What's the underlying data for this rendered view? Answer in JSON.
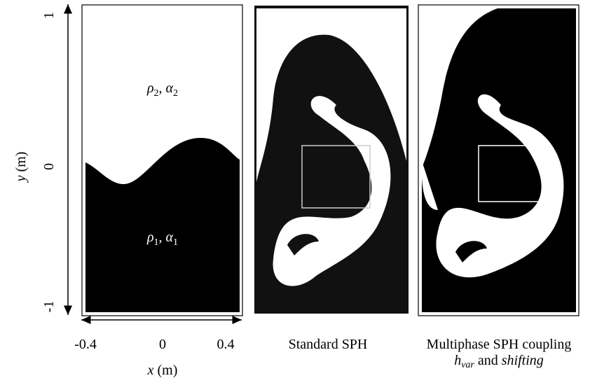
{
  "axes": {
    "y_ticks": [
      "1",
      "0",
      "-1"
    ],
    "x_ticks": [
      "-0.4",
      "0",
      "0.4"
    ],
    "y_label": {
      "symbol": "y",
      "unit": "(m)"
    },
    "x_label": {
      "symbol": "x",
      "unit": "(m)"
    }
  },
  "panels": [
    {
      "regions": [
        {
          "density": "ρ",
          "density_index": "2",
          "separator": ",",
          "fraction": "α",
          "fraction_index": "2"
        },
        {
          "density": "ρ",
          "density_index": "1",
          "separator": ",",
          "fraction": "α",
          "fraction_index": "1"
        }
      ]
    },
    {
      "caption": "Standard SPH"
    },
    {
      "caption": "Multiphase SPH coupling",
      "caption_line2": {
        "symbol": "h",
        "subscript": "var",
        "conjunction": "and",
        "method": "shifting"
      }
    }
  ]
}
